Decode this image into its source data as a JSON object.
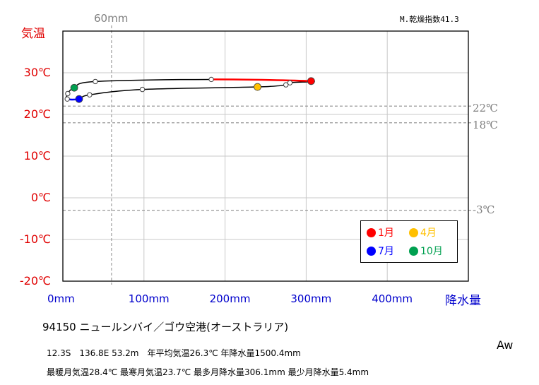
{
  "chart_data": {
    "type": "line",
    "title": "94150  ニュールンバイ／ゴウ空港(オーストラリア)",
    "xlabel": "降水量",
    "ylabel": "気温",
    "xlim": [
      0,
      500
    ],
    "ylim": [
      -20,
      40
    ],
    "x_ticks": [
      "0mm",
      "100mm",
      "200mm",
      "300mm",
      "400mm"
    ],
    "y_ticks": [
      "-20℃",
      "-10℃",
      "0℃",
      "10℃",
      "20℃",
      "30℃"
    ],
    "grid": true,
    "months": [
      1,
      2,
      3,
      4,
      5,
      6,
      7,
      8,
      9,
      10,
      11,
      12
    ],
    "precipitation_mm": [
      306.1,
      280.0,
      275.0,
      240.0,
      98.0,
      33.0,
      20.0,
      5.4,
      6.0,
      14.0,
      40.0,
      183.0
    ],
    "temperature_c": [
      28.0,
      27.6,
      27.1,
      26.6,
      26.0,
      24.7,
      23.7,
      23.7,
      25.0,
      26.4,
      27.9,
      28.4
    ],
    "highlighted_months": [
      {
        "month": 1,
        "label": "1月",
        "color": "#ff0000"
      },
      {
        "month": 4,
        "label": "4月",
        "color": "#ffc000"
      },
      {
        "month": 7,
        "label": "7月",
        "color": "#0000ff"
      },
      {
        "month": 10,
        "label": "10月",
        "color": "#00a050"
      }
    ],
    "reference_lines": {
      "temperature_c": [
        22,
        18,
        -3
      ],
      "temperature_labels": [
        "22℃",
        "18℃",
        "-3℃"
      ],
      "precipitation_mm": 60,
      "precipitation_label": "60mm"
    },
    "legend_position": "bottom-right"
  },
  "aridity_index": "M.乾燥指数41.3",
  "climate_class": "Aw",
  "info": {
    "line1": "12.3S　136.8E 53.2m　年平均気温26.3℃ 年降水量1500.4mm",
    "line2": "最暖月気温28.4℃ 最寒月気温23.7℃ 最多月降水量306.1mm 最少月降水量5.4mm"
  }
}
